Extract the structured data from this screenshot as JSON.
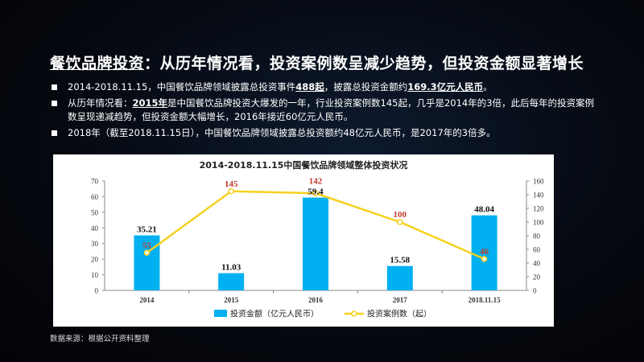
{
  "title": {
    "underlined": "餐饮品牌投资",
    "rest": "：从历年情况看，投资案例数呈减少趋势，但投资金额显著增长"
  },
  "bullets": [
    {
      "a": "2014-2018.11.15，中国餐饮品牌领域披露总投资事件",
      "b": "488起",
      "c": "，披露总投资金额约",
      "d": "169.3亿元人民币",
      "e": "。"
    },
    {
      "a": "从历年情况看：",
      "b": "2015年",
      "c": "是中国餐饮品牌投资大爆发的一年，行业投资案例数145起，几乎是2014年的3倍，此后每年的投资案例数呈现递减趋势，但投资金额大幅增长，2016年接近60亿元人民币。"
    },
    {
      "a": "2018年（截至2018.11.15日），中国餐饮品牌领域披露总投资额约48亿元人民币，是2017年的3倍多。"
    }
  ],
  "source": "数据来源：根据公开资料整理",
  "chart_data": {
    "type": "bar",
    "title": "2014-2018.11.15中国餐饮品牌领域整体投资状况",
    "categories": [
      "2014",
      "2015",
      "2016",
      "2017",
      "2018.11.15"
    ],
    "series": [
      {
        "name": "投资金额（亿元人民币）",
        "type": "bar",
        "axis": "left",
        "values": [
          35.21,
          11.03,
          59.4,
          15.58,
          48.04
        ],
        "labels": [
          "35.21",
          "11.03",
          "59.4",
          "15.58",
          "48.04"
        ],
        "color": "#00b0f0"
      },
      {
        "name": "投资案例数（起）",
        "type": "line",
        "axis": "right",
        "values": [
          55,
          145,
          142,
          100,
          46
        ],
        "labels": [
          "55",
          "145",
          "142",
          "100",
          "46"
        ],
        "color": "#f5d11f",
        "label_color": "#c0392b"
      }
    ],
    "ylim_left": [
      0,
      70
    ],
    "yticks_left": [
      "0",
      "10",
      "20",
      "30",
      "40",
      "50",
      "60",
      "70"
    ],
    "ylim_right": [
      0,
      160
    ],
    "yticks_right": [
      "0",
      "20",
      "40",
      "60",
      "80",
      "100",
      "120",
      "140",
      "160"
    ],
    "legend": "bottom",
    "grid": false
  }
}
